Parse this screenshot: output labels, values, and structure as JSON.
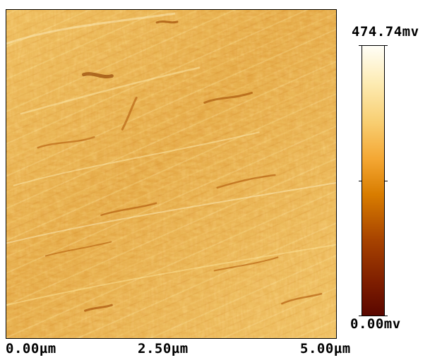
{
  "colorbar": {
    "max_label": "474.74mv",
    "min_label": "0.00mv"
  },
  "x_axis": {
    "ticks": [
      "0.00µm",
      "2.50µm",
      "5.00µm"
    ]
  },
  "colors": {
    "surface_base": "#e7ad4e",
    "surface_dark": "#c86f11",
    "surface_light": "#fff1b8"
  }
}
